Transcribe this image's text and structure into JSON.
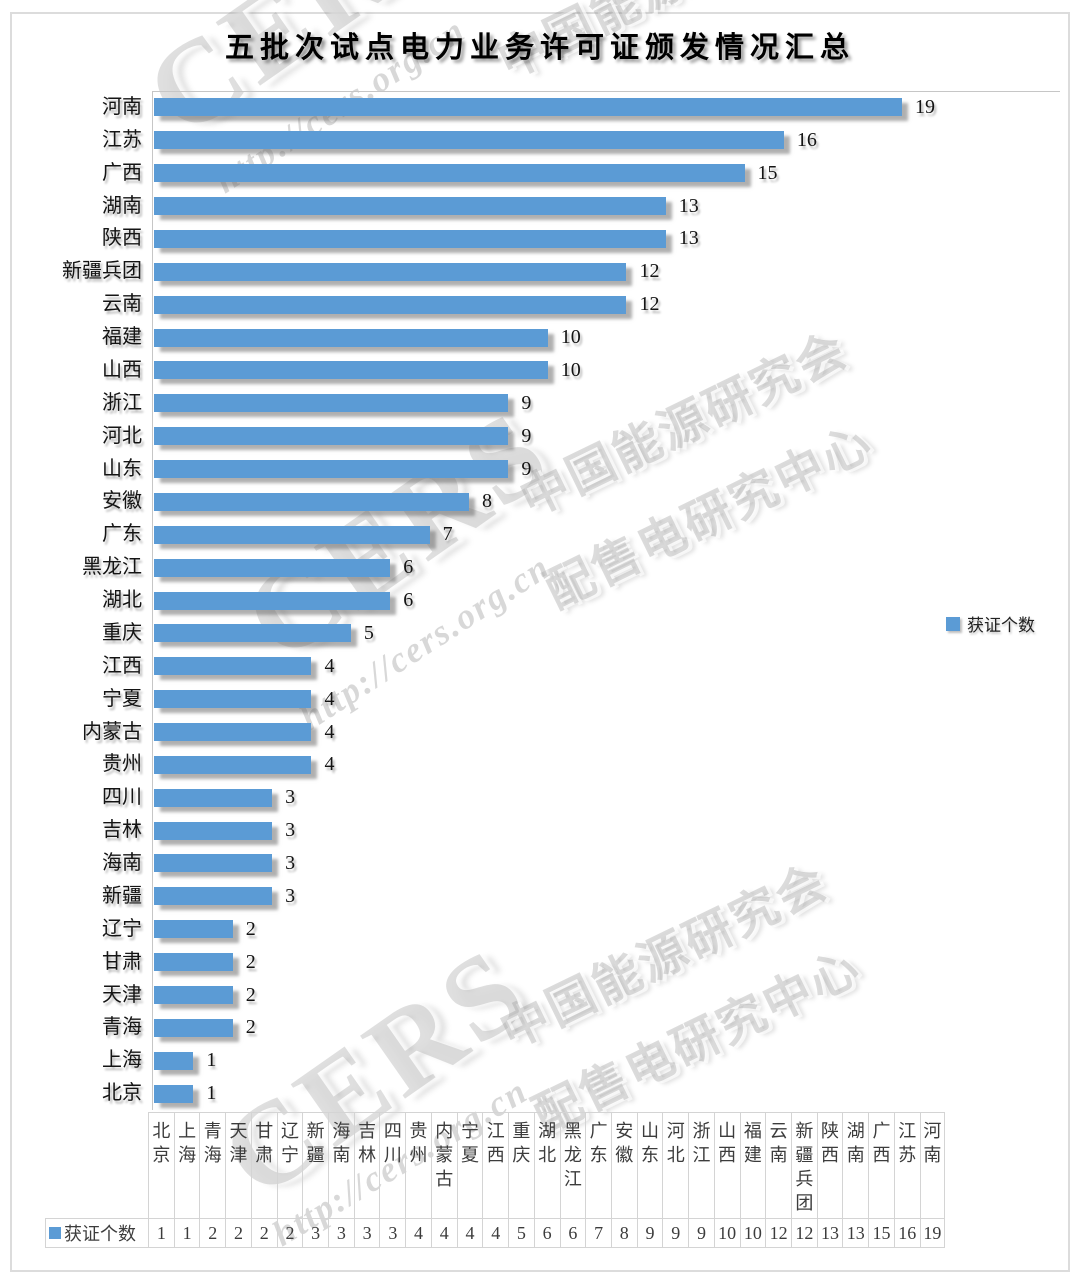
{
  "title": "五批次试点电力业务许可证颁发情况汇总",
  "legend": {
    "label": "获证个数",
    "color": "#5B9BD5"
  },
  "chart_data": {
    "type": "bar",
    "orientation": "horizontal",
    "title": "五批次试点电力业务许可证颁发情况汇总",
    "series_name": "获证个数",
    "categories": [
      "河南",
      "江苏",
      "广西",
      "湖南",
      "陕西",
      "新疆兵团",
      "云南",
      "福建",
      "山西",
      "浙江",
      "河北",
      "山东",
      "安徽",
      "广东",
      "黑龙江",
      "湖北",
      "重庆",
      "江西",
      "宁夏",
      "内蒙古",
      "贵州",
      "四川",
      "吉林",
      "海南",
      "新疆",
      "辽宁",
      "甘肃",
      "天津",
      "青海",
      "上海",
      "北京"
    ],
    "values": [
      19,
      16,
      15,
      13,
      13,
      12,
      12,
      10,
      10,
      9,
      9,
      9,
      8,
      7,
      6,
      6,
      5,
      4,
      4,
      4,
      4,
      3,
      3,
      3,
      3,
      2,
      2,
      2,
      2,
      1,
      1
    ],
    "xlim": [
      0,
      19
    ],
    "gridlines": false,
    "data_labels": true,
    "legend_position": "right"
  },
  "data_table": {
    "row_header": "获证个数",
    "columns": [
      "北京",
      "上海",
      "青海",
      "天津",
      "甘肃",
      "辽宁",
      "新疆",
      "海南",
      "吉林",
      "四川",
      "贵州",
      "内蒙古",
      "宁夏",
      "江西",
      "重庆",
      "湖北",
      "黑龙江",
      "广东",
      "安徽",
      "山东",
      "河北",
      "浙江",
      "山西",
      "福建",
      "云南",
      "新疆兵团",
      "陕西",
      "湖南",
      "广西",
      "江苏",
      "河南"
    ],
    "values": [
      1,
      1,
      2,
      2,
      2,
      2,
      3,
      3,
      3,
      3,
      4,
      4,
      4,
      4,
      5,
      6,
      6,
      7,
      8,
      9,
      9,
      9,
      10,
      10,
      12,
      12,
      13,
      13,
      15,
      16,
      19
    ]
  },
  "watermark": {
    "brand": "CERS",
    "url": "http://cers.org.cn",
    "org1": "中国能源研究会",
    "org2": "配售电研究中心"
  },
  "colors": {
    "bar": "#5B9BD5",
    "axis": "#C6C6C6",
    "table_border": "#D4D4D4",
    "frame": "#DCDCDC"
  }
}
